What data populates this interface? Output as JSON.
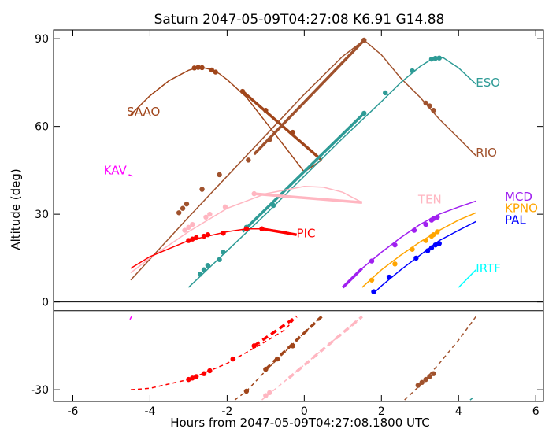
{
  "chart_data": {
    "type": "line",
    "title": "Saturn 2047-05-09T04:27:08   K6.91   G14.88",
    "xlabel": "Hours from 2047-05-09T04:27:08.1800 UTC",
    "ylabel": "Altitude (deg)",
    "xlim": [
      -6.5,
      6.2
    ],
    "ylim": [
      -34,
      93
    ],
    "xticks": [
      -6,
      -4,
      -2,
      0,
      2,
      4,
      6
    ],
    "yticks": [
      -30,
      0,
      30,
      60,
      90
    ],
    "series": [
      {
        "name": "SAAO",
        "color": "#a0451a",
        "label_at": [
          -4.6,
          65
        ],
        "x": [
          -4.5,
          -4.0,
          -3.5,
          -3.0,
          -2.8,
          -2.6,
          -2.4,
          -2.2,
          -2.0,
          -1.5,
          -1.0,
          -0.5,
          0.0,
          0.45
        ],
        "y": [
          64,
          70.5,
          75.7,
          79.2,
          80,
          80,
          79.4,
          78,
          76,
          70,
          61.5,
          53,
          44.5,
          48.5
        ],
        "dots": [
          [
            -2.85,
            80
          ],
          [
            -2.75,
            80.2
          ],
          [
            -2.65,
            80.1
          ],
          [
            -2.4,
            79.3
          ],
          [
            -2.3,
            78.6
          ],
          [
            -1.6,
            72
          ],
          [
            -1.0,
            65.5
          ],
          [
            -0.3,
            58
          ]
        ],
        "thick": [
          [
            -1.6,
            72
          ],
          [
            0.45,
            48.5
          ]
        ]
      },
      {
        "name": "RIO",
        "color": "#a0522d",
        "label_at": [
          4.45,
          51
        ],
        "x": [
          -4.5,
          -3.0,
          -2.0,
          -1.0,
          0.0,
          1.0,
          1.55,
          2.0,
          2.5,
          3.0,
          3.5,
          4.0,
          4.45
        ],
        "y": [
          7.5,
          29,
          43,
          57,
          71,
          84,
          89.5,
          84.5,
          76.5,
          70,
          62.5,
          56,
          50
        ],
        "dots": [
          [
            -3.25,
            30.5
          ],
          [
            -3.15,
            32
          ],
          [
            -3.05,
            33.5
          ],
          [
            -2.65,
            38.5
          ],
          [
            -2.2,
            43.5
          ],
          [
            -1.45,
            48.5
          ],
          [
            -0.9,
            55.5
          ],
          [
            1.55,
            89.5
          ],
          [
            3.15,
            68
          ],
          [
            3.25,
            67
          ],
          [
            3.35,
            65.5
          ]
        ],
        "thick": [
          [
            -1.3,
            50.5
          ],
          [
            1.55,
            89.5
          ]
        ]
      },
      {
        "name": "ESO",
        "color": "#2e9b96",
        "label_at": [
          4.45,
          75
        ],
        "x": [
          -3.0,
          -2.0,
          -1.0,
          0.0,
          1.0,
          2.0,
          2.5,
          3.0,
          3.3,
          3.6,
          4.0,
          4.45
        ],
        "y": [
          5,
          17.5,
          30,
          43,
          56,
          68.5,
          75,
          80.5,
          83,
          83.5,
          80,
          74.5
        ],
        "dots": [
          [
            -2.7,
            9.5
          ],
          [
            -2.6,
            11
          ],
          [
            -2.5,
            12.5
          ],
          [
            -2.2,
            14.5
          ],
          [
            -2.1,
            17
          ],
          [
            -1.5,
            25.5
          ],
          [
            -0.8,
            33
          ],
          [
            1.55,
            64.5
          ],
          [
            2.1,
            71.5
          ],
          [
            2.8,
            79
          ],
          [
            3.3,
            83
          ],
          [
            3.4,
            83.3
          ],
          [
            3.5,
            83.4
          ]
        ],
        "thick": [
          [
            -1.6,
            24
          ],
          [
            1.55,
            64.5
          ]
        ]
      },
      {
        "name": "TEN",
        "color": "#ffb6c1",
        "label_at": [
          2.95,
          35
        ],
        "x": [
          -4.5,
          -4.0,
          -3.0,
          -2.0,
          -1.0,
          0.0,
          0.5,
          1.0,
          1.5
        ],
        "y": [
          10,
          15,
          24,
          32,
          37,
          39.5,
          39.2,
          37.5,
          34
        ],
        "dots": [
          [
            -3.1,
            24.5
          ],
          [
            -3.0,
            25.5
          ],
          [
            -2.9,
            26.5
          ],
          [
            -2.55,
            29
          ],
          [
            -2.45,
            30
          ],
          [
            -2.05,
            32.5
          ],
          [
            -1.3,
            37
          ]
        ],
        "thick": [
          [
            -1.3,
            37
          ],
          [
            1.5,
            34
          ]
        ]
      },
      {
        "name": "PIC",
        "color": "#ff0000",
        "label_at": [
          -0.2,
          23.5
        ],
        "x": [
          -4.5,
          -4.0,
          -3.0,
          -2.0,
          -1.5,
          -1.0,
          -0.5,
          -0.2
        ],
        "y": [
          11.5,
          15.5,
          21,
          24,
          25,
          25,
          24,
          23
        ],
        "dots": [
          [
            -3.0,
            21
          ],
          [
            -2.9,
            21.5
          ],
          [
            -2.8,
            22
          ],
          [
            -2.6,
            22.5
          ],
          [
            -2.5,
            23
          ],
          [
            -2.1,
            23.5
          ],
          [
            -1.5,
            25
          ],
          [
            -1.1,
            25
          ]
        ],
        "thick": [
          [
            -1.1,
            25
          ],
          [
            -0.2,
            23
          ]
        ]
      },
      {
        "name": "MCD",
        "color": "#a020f0",
        "label_at": [
          5.2,
          36
        ],
        "x": [
          1.0,
          1.5,
          2.0,
          2.5,
          3.0,
          3.5,
          4.0,
          4.45
        ],
        "y": [
          5,
          11.5,
          17,
          22,
          26.5,
          30,
          32.5,
          34.5
        ],
        "dots": [
          [
            1.75,
            14
          ],
          [
            2.35,
            19.5
          ],
          [
            2.85,
            24.5
          ],
          [
            3.15,
            26.5
          ],
          [
            3.3,
            28
          ],
          [
            3.35,
            28.5
          ],
          [
            3.45,
            29
          ]
        ],
        "thick": [
          [
            1.0,
            5
          ],
          [
            1.5,
            11.5
          ]
        ]
      },
      {
        "name": "KPNO",
        "color": "#ffa500",
        "label_at": [
          5.2,
          32
        ],
        "x": [
          1.5,
          2.0,
          2.5,
          3.0,
          3.5,
          4.0,
          4.45
        ],
        "y": [
          5,
          11,
          16,
          20.5,
          24.5,
          28,
          30.5
        ],
        "dots": [
          [
            1.75,
            7.5
          ],
          [
            2.35,
            13
          ],
          [
            2.8,
            18
          ],
          [
            3.15,
            21
          ],
          [
            3.3,
            22.5
          ],
          [
            3.35,
            23
          ],
          [
            3.45,
            24
          ]
        ],
        "thick": []
      },
      {
        "name": "PAL",
        "color": "#0000ff",
        "label_at": [
          5.2,
          28
        ],
        "x": [
          1.8,
          2.0,
          2.5,
          3.0,
          3.5,
          4.0,
          4.45
        ],
        "y": [
          3,
          5.5,
          11,
          16,
          21,
          24.5,
          27.5
        ],
        "dots": [
          [
            1.8,
            3.5
          ],
          [
            2.2,
            8.5
          ],
          [
            2.9,
            15
          ],
          [
            3.2,
            17.5
          ],
          [
            3.3,
            18.5
          ],
          [
            3.4,
            19.5
          ],
          [
            3.5,
            20
          ]
        ],
        "thick": []
      },
      {
        "name": "IRTF",
        "color": "#00ffff",
        "label_at": [
          4.45,
          11.5
        ],
        "x": [
          4.0,
          4.45
        ],
        "y": [
          5,
          11
        ],
        "dots": [],
        "thick": []
      },
      {
        "name": "KAV",
        "color": "#ff00ff",
        "label_at": [
          -5.2,
          45
        ],
        "x": [
          -4.55,
          -4.45
        ],
        "y": [
          43.5,
          43
        ],
        "dots": [],
        "thick": []
      }
    ],
    "below_horizon": [
      {
        "color": "#ff0000",
        "x": [
          -4.5,
          -4.0,
          -3.0,
          -2.0,
          -1.0,
          -0.5,
          -0.2
        ],
        "y": [
          -30,
          -29.5,
          -26.5,
          -21,
          -13.5,
          -9.5,
          -5
        ],
        "dots": [
          [
            -3.0,
            -26.5
          ],
          [
            -2.9,
            -26
          ],
          [
            -2.8,
            -25.5
          ],
          [
            -2.6,
            -24.5
          ],
          [
            -2.45,
            -23.5
          ],
          [
            -1.85,
            -19.5
          ],
          [
            -1.3,
            -15
          ]
        ],
        "thick": [
          [
            -1.3,
            -15
          ],
          [
            -0.2,
            -5
          ]
        ]
      },
      {
        "color": "#a0451a",
        "x": [
          -1.8,
          -1.5,
          -1.0,
          -0.5,
          0.0,
          0.45
        ],
        "y": [
          -33.5,
          -30.5,
          -23.5,
          -17,
          -10.5,
          -5
        ],
        "dots": [
          [
            -1.5,
            -30.5
          ],
          [
            -1.0,
            -23
          ],
          [
            -0.7,
            -19.5
          ],
          [
            -0.3,
            -15
          ]
        ],
        "thick": [
          [
            -1.0,
            -23
          ],
          [
            0.45,
            -5
          ]
        ]
      },
      {
        "color": "#ffb6c1",
        "x": [
          -1.1,
          -0.5,
          0.0,
          0.5,
          1.0,
          1.5
        ],
        "y": [
          -33.5,
          -27,
          -21.5,
          -16,
          -10.5,
          -5
        ],
        "dots": [
          [
            -1.0,
            -32
          ],
          [
            -0.9,
            -31
          ]
        ],
        "thick": [
          [
            -0.4,
            -26
          ],
          [
            1.5,
            -5
          ]
        ]
      },
      {
        "color": "#a0522d",
        "x": [
          2.6,
          3.0,
          3.5,
          4.0,
          4.45
        ],
        "y": [
          -33.5,
          -28.5,
          -21,
          -13,
          -5
        ],
        "dots": [
          [
            2.95,
            -28.5
          ],
          [
            3.05,
            -27.5
          ],
          [
            3.15,
            -26.5
          ],
          [
            3.25,
            -25.5
          ],
          [
            3.35,
            -24.5
          ]
        ],
        "thick": []
      },
      {
        "color": "#2e9b96",
        "x": [
          4.3,
          4.4
        ],
        "y": [
          -33.5,
          -32.5
        ],
        "dots": [],
        "thick": []
      },
      {
        "color": "#ff00ff",
        "x": [
          -4.52,
          -4.48
        ],
        "y": [
          -6,
          -5
        ],
        "dots": [],
        "thick": []
      }
    ]
  }
}
